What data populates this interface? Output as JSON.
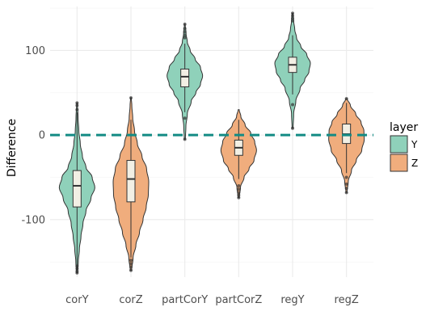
{
  "chart_data": {
    "type": "violin",
    "title": "",
    "xlabel": "",
    "ylabel": "Difference",
    "ylim": [
      -168,
      152
    ],
    "yticks": [
      -100,
      0,
      100
    ],
    "grid": true,
    "reference_line": {
      "y": 0,
      "color": "#138b84",
      "style": "dashed"
    },
    "legend": {
      "title": "layer",
      "position": "right",
      "entries": [
        {
          "label": "Y",
          "color": "#8fd1ba"
        },
        {
          "label": "Z",
          "color": "#f0ad7d"
        }
      ]
    },
    "categories": [
      "corY",
      "corZ",
      "partCorY",
      "partCorZ",
      "regY",
      "regZ"
    ],
    "series": [
      {
        "category": "corY",
        "layer": "Y",
        "min": -163,
        "max": 38,
        "q1": -85,
        "median": -60,
        "q3": -42,
        "whisker_low": -160,
        "whisker_high": 27,
        "outliers": [
          38,
          35,
          30,
          -155,
          -158,
          -161,
          -163
        ],
        "density": [
          [
            -163,
            0.03
          ],
          [
            -150,
            0.07
          ],
          [
            -135,
            0.13
          ],
          [
            -120,
            0.22
          ],
          [
            -105,
            0.33
          ],
          [
            -90,
            0.5
          ],
          [
            -75,
            0.78
          ],
          [
            -62,
            1.0
          ],
          [
            -50,
            0.85
          ],
          [
            -38,
            0.5
          ],
          [
            -25,
            0.3
          ],
          [
            -10,
            0.18
          ],
          [
            5,
            0.1
          ],
          [
            20,
            0.06
          ],
          [
            38,
            0.02
          ]
        ]
      },
      {
        "category": "corZ",
        "layer": "Z",
        "min": -160,
        "max": 44,
        "q1": -79,
        "median": -52,
        "q3": -30,
        "whisker_low": -145,
        "whisker_high": 18,
        "outliers": [
          44,
          -148,
          -152,
          -156,
          -160
        ],
        "density": [
          [
            -160,
            0.04
          ],
          [
            -145,
            0.12
          ],
          [
            -130,
            0.28
          ],
          [
            -115,
            0.48
          ],
          [
            -100,
            0.68
          ],
          [
            -85,
            0.86
          ],
          [
            -70,
            0.98
          ],
          [
            -55,
            1.0
          ],
          [
            -40,
            0.88
          ],
          [
            -25,
            0.62
          ],
          [
            -10,
            0.36
          ],
          [
            5,
            0.2
          ],
          [
            20,
            0.1
          ],
          [
            35,
            0.05
          ],
          [
            44,
            0.02
          ]
        ]
      },
      {
        "category": "partCorY",
        "layer": "Y",
        "min": -5,
        "max": 131,
        "q1": 57,
        "median": 69,
        "q3": 78,
        "whisker_low": 27,
        "whisker_high": 108,
        "outliers": [
          131,
          126,
          122,
          118,
          115,
          20,
          -5
        ],
        "density": [
          [
            -5,
            0.03
          ],
          [
            10,
            0.06
          ],
          [
            25,
            0.14
          ],
          [
            40,
            0.36
          ],
          [
            50,
            0.62
          ],
          [
            60,
            0.88
          ],
          [
            70,
            1.0
          ],
          [
            80,
            0.88
          ],
          [
            90,
            0.58
          ],
          [
            100,
            0.3
          ],
          [
            110,
            0.14
          ],
          [
            120,
            0.07
          ],
          [
            131,
            0.02
          ]
        ]
      },
      {
        "category": "partCorZ",
        "layer": "Z",
        "min": -74,
        "max": 30,
        "q1": -24,
        "median": -15,
        "q3": -6,
        "whisker_low": -52,
        "whisker_high": 18,
        "outliers": [
          -60,
          -64,
          -68,
          -71,
          -74
        ],
        "density": [
          [
            -74,
            0.03
          ],
          [
            -62,
            0.1
          ],
          [
            -50,
            0.3
          ],
          [
            -40,
            0.58
          ],
          [
            -30,
            0.86
          ],
          [
            -18,
            1.0
          ],
          [
            -8,
            0.9
          ],
          [
            2,
            0.68
          ],
          [
            12,
            0.36
          ],
          [
            22,
            0.12
          ],
          [
            30,
            0.03
          ]
        ]
      },
      {
        "category": "regY",
        "layer": "Y",
        "min": 8,
        "max": 144,
        "q1": 74,
        "median": 83,
        "q3": 92,
        "whisker_low": 48,
        "whisker_high": 118,
        "outliers": [
          144,
          141,
          138,
          135,
          36,
          8
        ],
        "density": [
          [
            8,
            0.03
          ],
          [
            25,
            0.06
          ],
          [
            40,
            0.18
          ],
          [
            55,
            0.42
          ],
          [
            65,
            0.68
          ],
          [
            75,
            0.92
          ],
          [
            85,
            1.0
          ],
          [
            95,
            0.8
          ],
          [
            105,
            0.46
          ],
          [
            115,
            0.22
          ],
          [
            125,
            0.12
          ],
          [
            135,
            0.06
          ],
          [
            144,
            0.02
          ]
        ]
      },
      {
        "category": "regZ",
        "layer": "Z",
        "min": -68,
        "max": 43,
        "q1": -10,
        "median": 1,
        "q3": 13,
        "whisker_low": -45,
        "whisker_high": 38,
        "outliers": [
          43,
          -50,
          -58,
          -63,
          -68
        ],
        "density": [
          [
            -68,
            0.03
          ],
          [
            -55,
            0.1
          ],
          [
            -42,
            0.28
          ],
          [
            -30,
            0.55
          ],
          [
            -18,
            0.86
          ],
          [
            -5,
            1.0
          ],
          [
            5,
            0.98
          ],
          [
            15,
            0.82
          ],
          [
            25,
            0.52
          ],
          [
            35,
            0.22
          ],
          [
            43,
            0.04
          ]
        ]
      }
    ]
  }
}
